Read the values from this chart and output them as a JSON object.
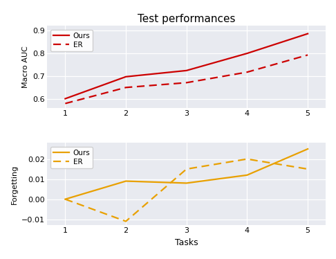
{
  "title": "Test performances",
  "tasks": [
    1,
    2,
    3,
    4,
    5
  ],
  "auc_ours": [
    0.602,
    0.698,
    0.725,
    0.8,
    0.886
  ],
  "auc_er": [
    0.581,
    0.651,
    0.672,
    0.718,
    0.793
  ],
  "forget_ours": [
    0.0,
    0.009,
    0.008,
    0.012,
    0.025
  ],
  "forget_er": [
    0.0,
    -0.011,
    0.015,
    0.02,
    0.015
  ],
  "red_color": "#cc0000",
  "orange_color": "#e8a000",
  "bg_color": "#e8eaf0",
  "auc_ylim": [
    0.56,
    0.92
  ],
  "auc_yticks": [
    0.6,
    0.7,
    0.8,
    0.9
  ],
  "forget_ylim": [
    -0.013,
    0.028
  ],
  "forget_yticks": [
    -0.01,
    0.0,
    0.01,
    0.02
  ],
  "xlabel": "Tasks",
  "ylabel_top": "Macro AUC",
  "ylabel_bottom": "Forgetting",
  "legend_ours": "Ours",
  "legend_er": "ER",
  "title_fontsize": 11,
  "label_fontsize": 8,
  "legend_fontsize": 7.5,
  "tick_fontsize": 8,
  "linewidth": 1.6
}
